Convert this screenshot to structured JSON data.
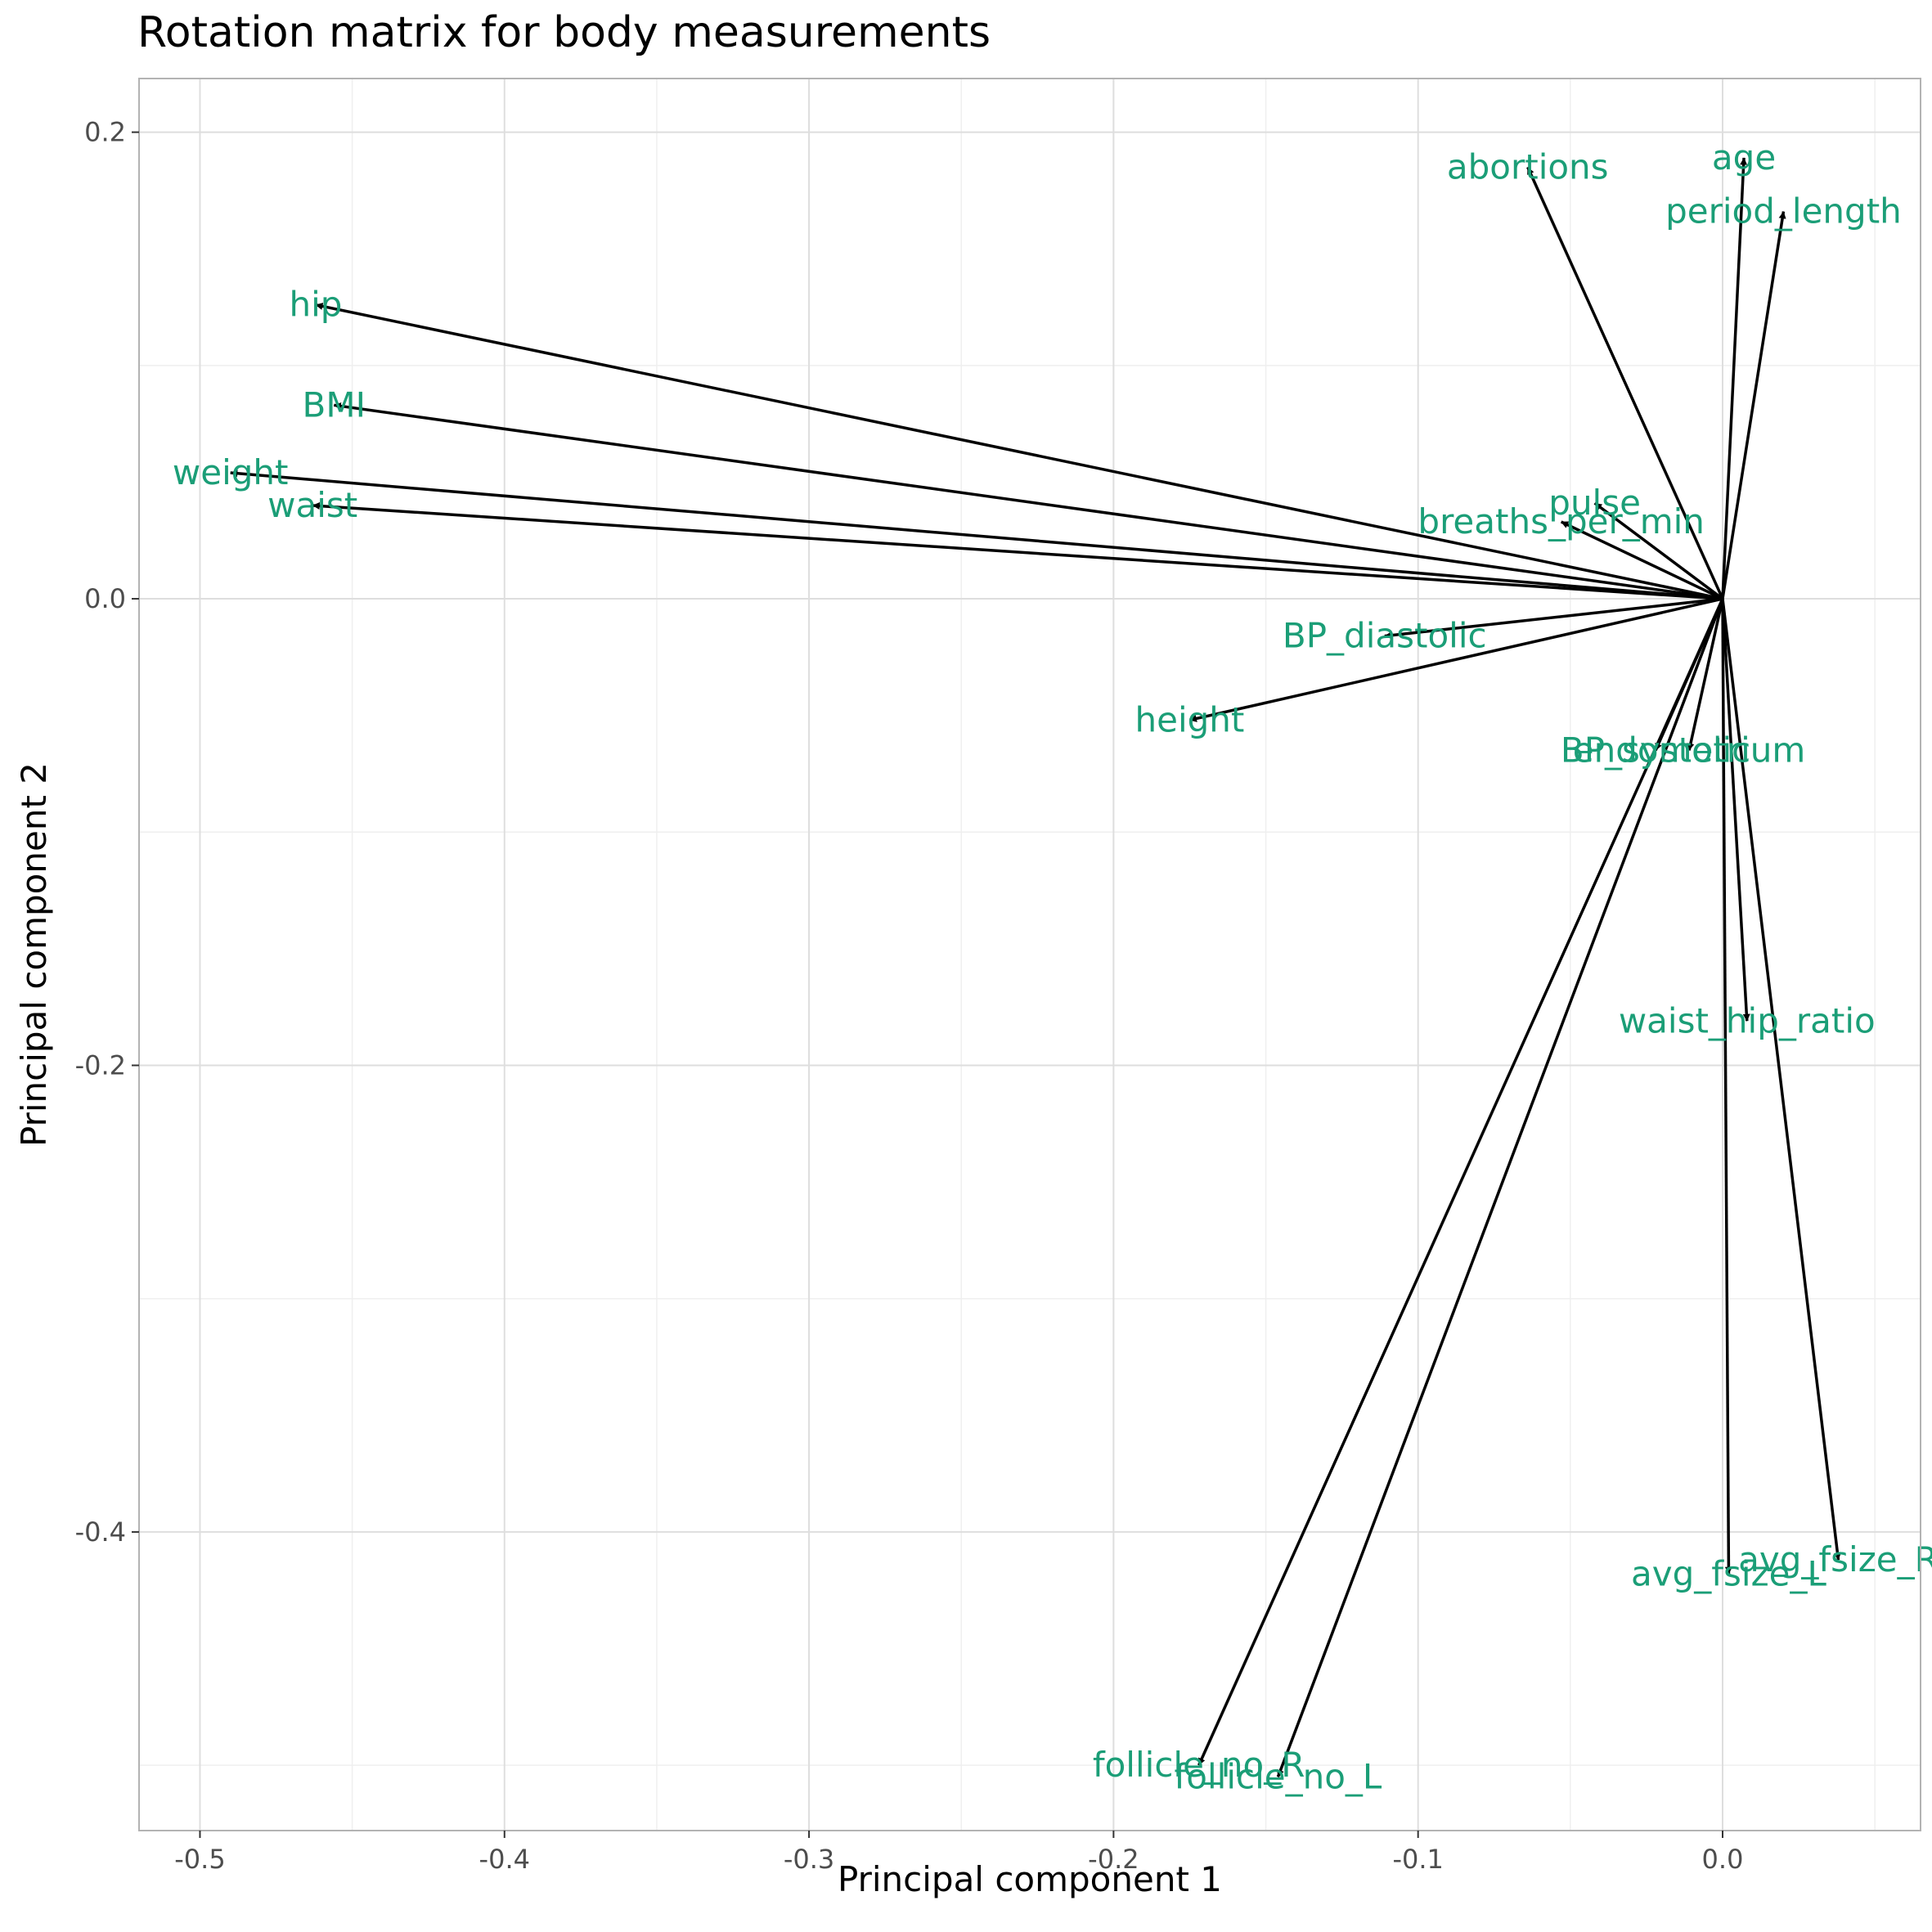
{
  "title": "Rotation matrix for body measurements",
  "colors": {
    "label": "#1b9e77",
    "arrow": "#000000",
    "grid_major": "#dedede",
    "grid_minor": "#efefef",
    "panel_border": "#b3b3b3"
  },
  "chart_data": {
    "type": "scatter",
    "title": "Rotation matrix for body measurements",
    "xlabel": "Principal component 1",
    "ylabel": "Principal component 2",
    "xlim": [
      -0.52,
      0.065
    ],
    "ylim": [
      -0.528,
      0.223
    ],
    "x_ticks": [
      -0.5,
      -0.4,
      -0.3,
      -0.2,
      -0.1,
      0.0
    ],
    "x_tick_labels": [
      "-0.5",
      "-0.4",
      "-0.3",
      "-0.2",
      "-0.1",
      "0.0"
    ],
    "y_ticks": [
      0.2,
      0.0,
      -0.2,
      -0.4
    ],
    "y_tick_labels": [
      "0.2",
      "0.0",
      "-0.2",
      "-0.4"
    ],
    "grid": true,
    "legend": "none",
    "arrow_origin": [
      0,
      0
    ],
    "vectors": [
      {
        "name": "abortions",
        "x": -0.064,
        "y": 0.185
      },
      {
        "name": "age",
        "x": 0.007,
        "y": 0.189
      },
      {
        "name": "period_length",
        "x": 0.02,
        "y": 0.166
      },
      {
        "name": "hip",
        "x": -0.462,
        "y": 0.126
      },
      {
        "name": "BMI",
        "x": -0.456,
        "y": 0.083
      },
      {
        "name": "weight",
        "x": -0.49,
        "y": 0.054
      },
      {
        "name": "waist",
        "x": -0.463,
        "y": 0.04
      },
      {
        "name": "pulse",
        "x": -0.042,
        "y": 0.041
      },
      {
        "name": "breaths_per_min",
        "x": -0.053,
        "y": 0.033
      },
      {
        "name": "BP_diastolic",
        "x": -0.111,
        "y": -0.016
      },
      {
        "name": "height",
        "x": -0.175,
        "y": -0.052
      },
      {
        "name": "BP_systolic",
        "x": -0.022,
        "y": -0.065
      },
      {
        "name": "endometrium",
        "x": -0.011,
        "y": -0.065
      },
      {
        "name": "waist_hip_ratio",
        "x": 0.008,
        "y": -0.181
      },
      {
        "name": "avg_fsize_L",
        "x": 0.002,
        "y": -0.418
      },
      {
        "name": "avg_fsize_R",
        "x": 0.038,
        "y": -0.412
      },
      {
        "name": "follicle_no_R",
        "x": -0.172,
        "y": -0.5
      },
      {
        "name": "follicle_no_L",
        "x": -0.146,
        "y": -0.505
      }
    ]
  }
}
